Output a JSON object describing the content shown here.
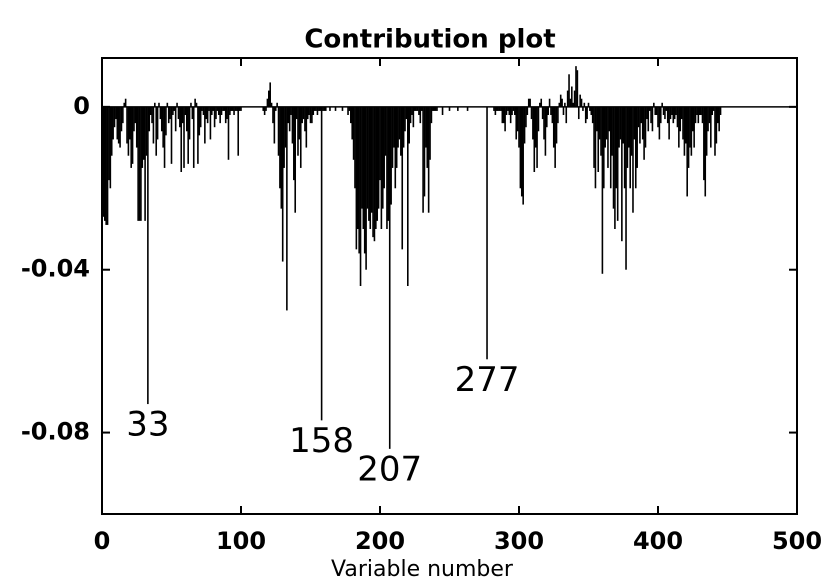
{
  "chart_data": {
    "type": "bar",
    "title": "Contribution plot",
    "xlabel": "Variable number",
    "x": [
      1,
      2,
      3,
      4,
      5,
      6,
      7,
      8,
      9,
      10,
      11,
      12,
      13,
      14,
      15,
      16,
      17,
      18,
      19,
      20,
      21,
      22,
      23,
      24,
      25,
      26,
      27,
      28,
      29,
      30,
      31,
      32,
      33,
      34,
      35,
      36,
      37,
      38,
      39,
      40,
      41,
      42,
      43,
      44,
      45,
      46,
      47,
      48,
      49,
      50,
      51,
      52,
      53,
      54,
      55,
      56,
      57,
      58,
      59,
      60,
      61,
      62,
      63,
      64,
      65,
      66,
      67,
      68,
      69,
      70,
      71,
      72,
      73,
      74,
      75,
      76,
      77,
      78,
      79,
      80,
      81,
      82,
      83,
      84,
      85,
      86,
      87,
      88,
      89,
      90,
      91,
      92,
      93,
      94,
      95,
      96,
      97,
      98,
      99,
      100,
      101,
      102,
      103,
      104,
      105,
      106,
      107,
      108,
      109,
      110,
      111,
      112,
      113,
      114,
      115,
      116,
      117,
      118,
      119,
      120,
      121,
      122,
      123,
      124,
      125,
      126,
      127,
      128,
      129,
      130,
      131,
      132,
      133,
      134,
      135,
      136,
      137,
      138,
      139,
      140,
      141,
      142,
      143,
      144,
      145,
      146,
      147,
      148,
      149,
      150,
      151,
      152,
      153,
      154,
      155,
      156,
      157,
      158,
      159,
      160,
      161,
      162,
      163,
      164,
      165,
      166,
      167,
      168,
      169,
      170,
      171,
      172,
      173,
      174,
      175,
      176,
      177,
      178,
      179,
      180,
      181,
      182,
      183,
      184,
      185,
      186,
      187,
      188,
      189,
      190,
      191,
      192,
      193,
      194,
      195,
      196,
      197,
      198,
      199,
      200,
      201,
      202,
      203,
      204,
      205,
      206,
      207,
      208,
      209,
      210,
      211,
      212,
      213,
      214,
      215,
      216,
      217,
      218,
      219,
      220,
      221,
      222,
      223,
      224,
      225,
      226,
      227,
      228,
      229,
      230,
      231,
      232,
      233,
      234,
      235,
      236,
      237,
      238,
      239,
      240,
      241,
      242,
      243,
      244,
      245,
      246,
      247,
      248,
      249,
      250,
      251,
      252,
      253,
      254,
      255,
      256,
      257,
      258,
      259,
      260,
      261,
      262,
      263,
      264,
      265,
      266,
      267,
      268,
      269,
      270,
      271,
      272,
      273,
      274,
      275,
      276,
      277,
      278,
      279,
      280,
      281,
      282,
      283,
      284,
      285,
      286,
      287,
      288,
      289,
      290,
      291,
      292,
      293,
      294,
      295,
      296,
      297,
      298,
      299,
      300,
      301,
      302,
      303,
      304,
      305,
      306,
      307,
      308,
      309,
      310,
      311,
      312,
      313,
      314,
      315,
      316,
      317,
      318,
      319,
      320,
      321,
      322,
      323,
      324,
      325,
      326,
      327,
      328,
      329,
      330,
      331,
      332,
      333,
      334,
      335,
      336,
      337,
      338,
      339,
      340,
      341,
      342,
      343,
      344,
      345,
      346,
      347,
      348,
      349,
      350,
      351,
      352,
      353,
      354,
      355,
      356,
      357,
      358,
      359,
      360,
      361,
      362,
      363,
      364,
      365,
      366,
      367,
      368,
      369,
      370,
      371,
      372,
      373,
      374,
      375,
      376,
      377,
      378,
      379,
      380,
      381,
      382,
      383,
      384,
      385,
      386,
      387,
      388,
      389,
      390,
      391,
      392,
      393,
      394,
      395,
      396,
      397,
      398,
      399,
      400,
      401,
      402,
      403,
      404,
      405,
      406,
      407,
      408,
      409,
      410,
      411,
      412,
      413,
      414,
      415,
      416,
      417,
      418,
      419,
      420,
      421,
      422,
      423,
      424,
      425,
      426,
      427,
      428,
      429,
      430,
      431,
      432,
      433,
      434,
      435,
      436,
      437,
      438,
      439,
      440,
      441,
      442,
      443,
      444,
      445
    ],
    "values": [
      -0.027,
      -0.028,
      -0.029,
      -0.029,
      -0.018,
      -0.02,
      -0.012,
      -0.008,
      -0.005,
      -0.003,
      -0.008,
      -0.009,
      -0.01,
      -0.006,
      -0.004,
      0.001,
      0.002,
      -0.009,
      -0.012,
      -0.008,
      -0.015,
      -0.014,
      -0.006,
      -0.004,
      -0.01,
      -0.028,
      -0.028,
      -0.028,
      -0.015,
      -0.013,
      -0.028,
      -0.012,
      -0.073,
      -0.006,
      -0.002,
      -0.004,
      -0.009,
      0.001,
      -0.012,
      -0.008,
      0.001,
      -0.003,
      -0.006,
      -0.01,
      -0.015,
      -0.007,
      0.001,
      -0.004,
      -0.003,
      -0.014,
      -0.002,
      -0.001,
      -0.006,
      0.001,
      -0.003,
      -0.005,
      -0.016,
      -0.004,
      -0.015,
      -0.002,
      -0.006,
      -0.014,
      -0.008,
      0.001,
      -0.003,
      -0.015,
      0.002,
      0.001,
      -0.014,
      -0.007,
      -0.005,
      -0.001,
      -0.002,
      -0.009,
      -0.003,
      -0.004,
      -0.001,
      -0.008,
      -0.002,
      -0.001,
      -0.005,
      -0.003,
      -0.001,
      -0.002,
      -0.004,
      -0.002,
      -0.001,
      -0.001,
      -0.004,
      -0.003,
      -0.013,
      -0.002,
      -0.001,
      -0.001,
      -0.002,
      -0.001,
      -0.001,
      -0.012,
      -0.001,
      -0.001,
      0,
      0,
      0,
      0,
      0,
      0,
      0,
      0,
      0,
      0,
      0,
      0,
      0,
      0,
      0,
      -0.001,
      -0.002,
      -0.001,
      0.002,
      0.004,
      0.006,
      0.001,
      -0.004,
      -0.009,
      -0.001,
      0.001,
      -0.012,
      -0.02,
      -0.025,
      -0.038,
      -0.015,
      -0.01,
      -0.05,
      -0.004,
      -0.006,
      -0.002,
      -0.009,
      -0.018,
      -0.026,
      -0.003,
      -0.012,
      -0.008,
      -0.015,
      -0.004,
      -0.003,
      -0.006,
      -0.01,
      -0.003,
      -0.002,
      -0.004,
      -0.004,
      -0.002,
      -0.001,
      -0.001,
      -0.002,
      -0.001,
      -0.001,
      -0.077,
      -0.001,
      -0.001,
      -0.001,
      0,
      0,
      -0.001,
      0,
      0,
      0,
      -0.001,
      0,
      0,
      0,
      0,
      -0.001,
      0,
      0,
      0,
      -0.002,
      -0.001,
      -0.004,
      -0.008,
      -0.013,
      -0.02,
      -0.035,
      -0.03,
      -0.036,
      -0.044,
      -0.025,
      -0.03,
      -0.036,
      -0.04,
      -0.025,
      -0.028,
      -0.03,
      -0.026,
      -0.032,
      -0.033,
      -0.03,
      -0.028,
      -0.025,
      -0.018,
      -0.03,
      -0.025,
      -0.02,
      -0.012,
      -0.03,
      -0.028,
      -0.084,
      -0.024,
      -0.015,
      -0.01,
      -0.02,
      -0.015,
      -0.01,
      -0.008,
      -0.012,
      -0.035,
      -0.01,
      -0.006,
      -0.003,
      -0.044,
      -0.009,
      -0.004,
      -0.002,
      -0.005,
      -0.001,
      -0.001,
      -0.001,
      -0.002,
      -0.004,
      -0.001,
      -0.026,
      -0.022,
      -0.01,
      -0.015,
      -0.026,
      -0.013,
      -0.004,
      -0.001,
      -0.001,
      -0.001,
      -0.001,
      0,
      0,
      0,
      -0.002,
      0,
      0,
      0,
      0,
      -0.001,
      0,
      0,
      0,
      0,
      0,
      -0.001,
      0,
      0,
      0,
      0,
      0,
      0,
      -0.001,
      0,
      0,
      0,
      0,
      0,
      0,
      0,
      0,
      0,
      0,
      0,
      0,
      0,
      -0.062,
      0,
      0,
      0,
      0,
      -0.001,
      -0.002,
      -0.001,
      -0.001,
      -0.001,
      -0.001,
      -0.004,
      -0.004,
      -0.006,
      -0.002,
      -0.001,
      -0.002,
      -0.004,
      -0.002,
      -0.001,
      -0.002,
      -0.008,
      -0.006,
      -0.01,
      -0.02,
      -0.022,
      -0.024,
      -0.009,
      -0.005,
      -0.002,
      0.002,
      0.002,
      -0.003,
      -0.008,
      -0.016,
      -0.01,
      -0.015,
      -0.006,
      0.001,
      0.002,
      -0.003,
      -0.008,
      -0.012,
      -0.005,
      -0.002,
      0.002,
      -0.002,
      -0.004,
      -0.01,
      -0.015,
      -0.009,
      -0.004,
      0.001,
      0.003,
      0.002,
      -0.002,
      0.001,
      -0.004,
      0.004,
      0.008,
      0.002,
      0.005,
      0.001,
      0.004,
      0.01,
      0.009,
      -0.003,
      0.003,
      0.002,
      -0.001,
      0.001,
      -0.004,
      -0.003,
      0.001,
      -0.001,
      -0.002,
      -0.004,
      -0.015,
      -0.02,
      -0.006,
      -0.016,
      -0.008,
      -0.012,
      -0.041,
      -0.02,
      -0.01,
      -0.008,
      -0.015,
      -0.006,
      -0.02,
      -0.012,
      -0.025,
      -0.03,
      -0.02,
      -0.028,
      -0.01,
      -0.008,
      -0.033,
      -0.009,
      -0.02,
      -0.04,
      -0.015,
      -0.01,
      -0.02,
      -0.012,
      -0.026,
      -0.008,
      -0.02,
      -0.015,
      -0.005,
      -0.009,
      -0.004,
      -0.008,
      -0.013,
      -0.01,
      -0.003,
      -0.006,
      -0.001,
      -0.004,
      -0.006,
      0.001,
      -0.002,
      -0.002,
      -0.005,
      -0.008,
      -0.004,
      0.001,
      -0.002,
      -0.003,
      -0.001,
      -0.004,
      -0.008,
      -0.003,
      -0.002,
      -0.004,
      -0.003,
      -0.002,
      -0.005,
      -0.01,
      -0.006,
      -0.003,
      -0.008,
      -0.012,
      -0.009,
      -0.022,
      -0.015,
      -0.01,
      -0.012,
      -0.006,
      -0.01,
      -0.004,
      -0.002,
      -0.004,
      -0.002,
      -0.002,
      -0.004,
      -0.018,
      -0.022,
      -0.012,
      -0.006,
      -0.004,
      -0.01,
      -0.002,
      -0.001,
      -0.012,
      -0.009,
      -0.004,
      -0.006,
      -0.002
    ],
    "color": "#000000",
    "xlim": [
      0,
      500
    ],
    "xticks": [
      0,
      100,
      200,
      300,
      400,
      500
    ],
    "ylim": [
      -0.1,
      0.012
    ],
    "yticks": [
      -0.08,
      -0.04,
      0
    ],
    "annotations": [
      {
        "x": 33,
        "text": "33"
      },
      {
        "x": 158,
        "text": "158"
      },
      {
        "x": 207,
        "text": "207"
      },
      {
        "x": 277,
        "text": "277"
      }
    ]
  }
}
